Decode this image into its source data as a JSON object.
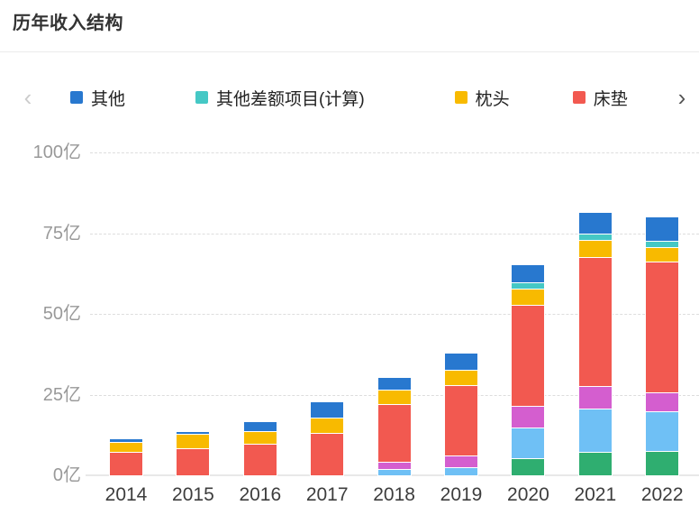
{
  "header": {
    "title": "历年收入结构"
  },
  "legend": {
    "prev_icon": "‹",
    "next_icon": "›",
    "items": [
      {
        "label": "其他",
        "color": "#2878cf"
      },
      {
        "label": "其他差额项目(计算)",
        "color": "#45c8c5"
      },
      {
        "label": "枕头",
        "color": "#f8ba00"
      },
      {
        "label": "床垫",
        "color": "#f25950"
      }
    ]
  },
  "chart_data": {
    "type": "bar",
    "stacked": true,
    "title": "历年收入结构",
    "xlabel": "",
    "ylabel": "亿",
    "ylim": [
      0,
      100
    ],
    "grid": "horizontal-dashed",
    "legend_position": "top-scrollable",
    "y_ticks": [
      "0亿",
      "25亿",
      "50亿",
      "75亿",
      "100亿"
    ],
    "y_tick_values": [
      0,
      25,
      50,
      75,
      100
    ],
    "categories": [
      "2014",
      "2015",
      "2016",
      "2017",
      "2018",
      "2019",
      "2020",
      "2021",
      "2022"
    ],
    "series_bottom_to_top": [
      {
        "label": "",
        "label_visible": false,
        "color": "#2fae70",
        "values": [
          0,
          0,
          0,
          0,
          0,
          0,
          4.9,
          7.0,
          7.3
        ]
      },
      {
        "label": "",
        "label_visible": false,
        "color": "#6fc0f5",
        "values": [
          0,
          0,
          0,
          0,
          1.8,
          2.1,
          9.6,
          13.3,
          12.3
        ]
      },
      {
        "label": "",
        "label_visible": false,
        "color": "#d45ecf",
        "values": [
          0,
          0,
          0,
          0,
          2.1,
          3.7,
          6.6,
          7.0,
          5.8
        ]
      },
      {
        "label": "床垫",
        "label_visible": true,
        "color": "#f25950",
        "values": [
          6.9,
          8.0,
          9.6,
          12.9,
          17.9,
          22.0,
          31.5,
          40.0,
          40.4
        ]
      },
      {
        "label": "枕头",
        "label_visible": true,
        "color": "#f8ba00",
        "values": [
          3.3,
          4.5,
          3.9,
          4.7,
          4.6,
          4.5,
          5.0,
          5.4,
          4.7
        ]
      },
      {
        "label": "其他差额项目(计算)",
        "label_visible": true,
        "color": "#45c8c5",
        "values": [
          0,
          0,
          0,
          0,
          0,
          0,
          2.0,
          2.0,
          2.0
        ]
      },
      {
        "label": "其他",
        "label_visible": true,
        "color": "#2878cf",
        "values": [
          0.9,
          0.9,
          2.9,
          4.9,
          3.7,
          5.5,
          5.5,
          6.5,
          7.5
        ]
      }
    ],
    "totals": [
      11.1,
      13.4,
      16.4,
      22.5,
      30.1,
      37.8,
      65.1,
      81.2,
      80.2
    ]
  }
}
